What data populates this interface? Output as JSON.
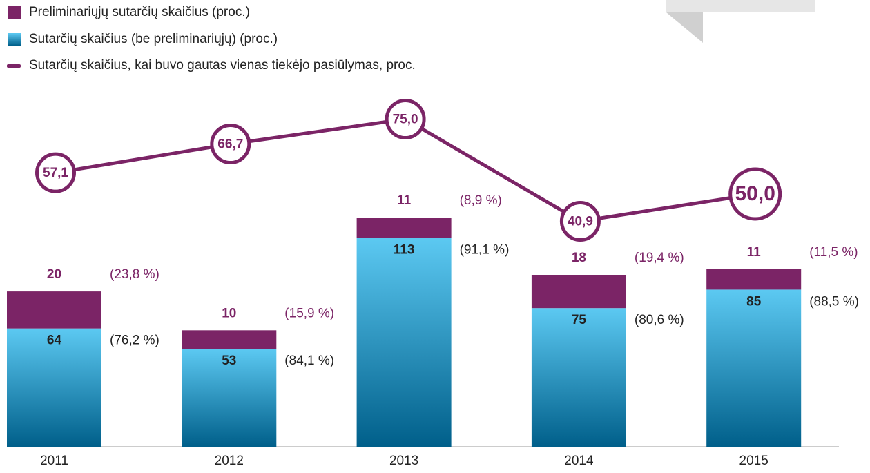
{
  "chart_data": {
    "type": "bar-line",
    "categories": [
      "2011",
      "2012",
      "2013",
      "2014",
      "2015"
    ],
    "series": [
      {
        "name": "Sutarčių skaičius (be preliminariųjų) (proc.)",
        "color": "#1a8fc0",
        "values": [
          64,
          53,
          113,
          75,
          85
        ],
        "shares": [
          76.2,
          84.1,
          91.1,
          80.6,
          88.5
        ],
        "share_labels": [
          "(76,2 %)",
          "(84,1 %)",
          "(91,1 %)",
          "(80,6 %)",
          "(88,5 %)"
        ]
      },
      {
        "name": "Preliminariųjų sutarčių skaičius (proc.)",
        "color": "#7b2466",
        "values": [
          20,
          10,
          11,
          18,
          11
        ],
        "shares": [
          23.8,
          15.9,
          8.9,
          19.4,
          11.5
        ],
        "share_labels": [
          "(23,8 %)",
          "(15,9 %)",
          "(8,9 %)",
          "(19,4 %)",
          "(11,5 %)"
        ]
      },
      {
        "name": "Sutarčių skaičius, kai buvo gautas vienas tiekėjo pasiūlymas, proc.",
        "color": "#7b2466",
        "type": "line",
        "values": [
          57.1,
          66.7,
          75.0,
          40.9,
          50.0
        ],
        "value_labels": [
          "57,1",
          "66,7",
          "75,0",
          "40,9",
          "50,0"
        ]
      }
    ]
  }
}
